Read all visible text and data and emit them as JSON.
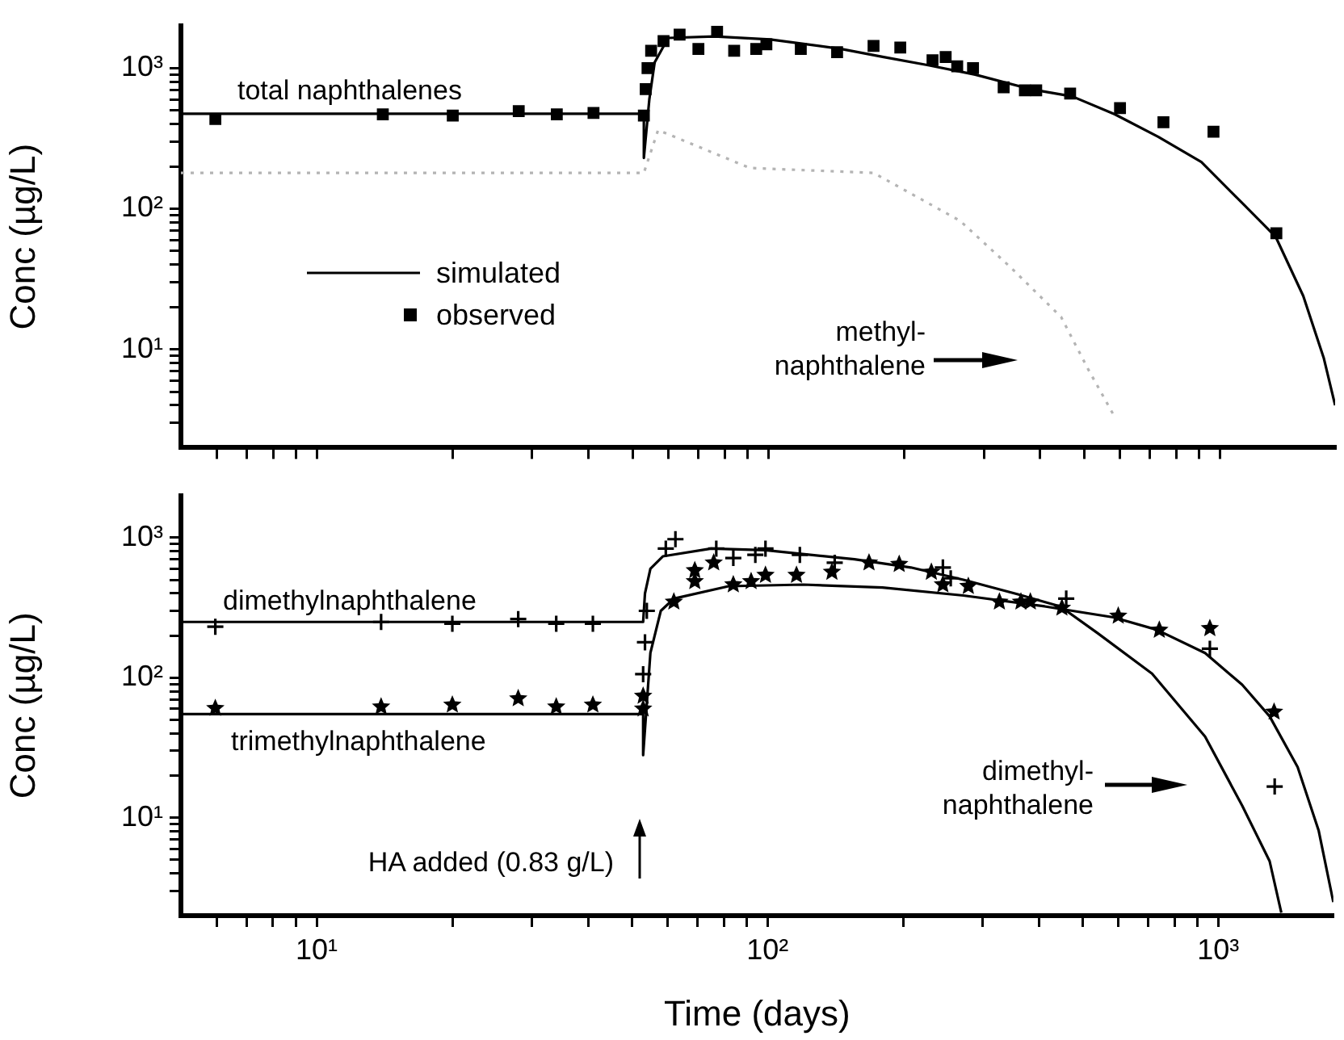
{
  "chart_data": [
    {
      "type": "line",
      "ylabel": "Conc (µg/L)",
      "log": "xy",
      "grid": false,
      "legend": "left",
      "tick_labels": "y",
      "xlim": [
        5,
        1800
      ],
      "ylim": [
        2,
        2000
      ],
      "xticks": [
        {
          "value": 6,
          "label": null
        },
        {
          "value": 7,
          "label": null
        },
        {
          "value": 8,
          "label": null
        },
        {
          "value": 9,
          "label": null
        },
        {
          "value": 10,
          "label": null
        },
        {
          "value": 20,
          "label": null
        },
        {
          "value": 30,
          "label": null
        },
        {
          "value": 40,
          "label": null
        },
        {
          "value": 50,
          "label": null
        },
        {
          "value": 60,
          "label": null
        },
        {
          "value": 70,
          "label": null
        },
        {
          "value": 80,
          "label": null
        },
        {
          "value": 90,
          "label": null
        },
        {
          "value": 100,
          "label": null
        },
        {
          "value": 200,
          "label": null
        },
        {
          "value": 300,
          "label": null
        },
        {
          "value": 400,
          "label": null
        },
        {
          "value": 500,
          "label": null
        },
        {
          "value": 600,
          "label": null
        },
        {
          "value": 700,
          "label": null
        },
        {
          "value": 800,
          "label": null
        },
        {
          "value": 900,
          "label": null
        },
        {
          "value": 1000,
          "label": null
        }
      ],
      "yticks": [
        {
          "value": 3,
          "label": null
        },
        {
          "value": 4,
          "label": null
        },
        {
          "value": 5,
          "label": null
        },
        {
          "value": 6,
          "label": null
        },
        {
          "value": 7,
          "label": null
        },
        {
          "value": 8,
          "label": null
        },
        {
          "value": 9,
          "label": null
        },
        {
          "value": 10,
          "label": "10¹"
        },
        {
          "value": 20,
          "label": null
        },
        {
          "value": 30,
          "label": null
        },
        {
          "value": 40,
          "label": null
        },
        {
          "value": 50,
          "label": null
        },
        {
          "value": 60,
          "label": null
        },
        {
          "value": 70,
          "label": null
        },
        {
          "value": 80,
          "label": null
        },
        {
          "value": 90,
          "label": null
        },
        {
          "value": 100,
          "label": "10²"
        },
        {
          "value": 200,
          "label": null
        },
        {
          "value": 300,
          "label": null
        },
        {
          "value": 400,
          "label": null
        },
        {
          "value": 500,
          "label": null
        },
        {
          "value": 600,
          "label": null
        },
        {
          "value": 700,
          "label": null
        },
        {
          "value": 800,
          "label": null
        },
        {
          "value": 900,
          "label": null
        },
        {
          "value": 1000,
          "label": "10³"
        }
      ],
      "series": [
        {
          "name": "simulated",
          "color": "#000000",
          "line_style": "solid",
          "marker": "none",
          "x": [
            5,
            53,
            53,
            54.5,
            56,
            60,
            76,
            101,
            145,
            180,
            226,
            287,
            380,
            471,
            585,
            730,
            910,
            1130,
            1330,
            1530,
            1700,
            1800
          ],
          "values": [
            474,
            474,
            230,
            600,
            1100,
            1640,
            1680,
            1600,
            1370,
            1200,
            1050,
            900,
            710,
            630,
            470,
            325,
            215,
            107,
            63,
            24,
            8.6,
            4
          ]
        },
        {
          "name": "observed",
          "type": "scatter",
          "color": "#000000",
          "marker": "square",
          "x": [
            5.96,
            14,
            20,
            28,
            34,
            41,
            53,
            53.5,
            54,
            55,
            58.6,
            63.6,
            70,
            77,
            84,
            94,
            99,
            118,
            142,
            171,
            196,
            231,
            247,
            262,
            284,
            332,
            370,
            392,
            466,
            601,
            750,
            968,
            1334
          ],
          "values": [
            435,
            470,
            460,
            495,
            470,
            480,
            460,
            710,
            1000,
            1330,
            1560,
            1730,
            1370,
            1820,
            1330,
            1370,
            1480,
            1370,
            1300,
            1440,
            1400,
            1140,
            1200,
            1030,
            1000,
            730,
            695,
            695,
            660,
            520,
            413,
            353,
            67
          ]
        },
        {
          "color": "#b4b4b4",
          "line_style": "dotted",
          "marker": "none",
          "x": [
            5,
            53,
            57,
            91,
            171,
            266,
            345,
            445,
            510,
            585
          ],
          "values": [
            180,
            180,
            363,
            195,
            180,
            82,
            38,
            17,
            7.3,
            3.3
          ]
        }
      ],
      "annotations": [
        "total naphthalenes",
        "methyl-\nnaphthalene"
      ]
    },
    {
      "type": "line",
      "xlabel": "Time (days)",
      "ylabel": "Conc (µg/L)",
      "log": "xy",
      "grid": false,
      "xlim": [
        5,
        1800
      ],
      "ylim": [
        2,
        2000
      ],
      "xticks": [
        {
          "value": 6,
          "label": null
        },
        {
          "value": 7,
          "label": null
        },
        {
          "value": 8,
          "label": null
        },
        {
          "value": 9,
          "label": null
        },
        {
          "value": 10,
          "label": "10¹"
        },
        {
          "value": 20,
          "label": null
        },
        {
          "value": 30,
          "label": null
        },
        {
          "value": 40,
          "label": null
        },
        {
          "value": 50,
          "label": null
        },
        {
          "value": 60,
          "label": null
        },
        {
          "value": 70,
          "label": null
        },
        {
          "value": 80,
          "label": null
        },
        {
          "value": 90,
          "label": null
        },
        {
          "value": 100,
          "label": "10²"
        },
        {
          "value": 200,
          "label": null
        },
        {
          "value": 300,
          "label": null
        },
        {
          "value": 400,
          "label": null
        },
        {
          "value": 500,
          "label": null
        },
        {
          "value": 600,
          "label": null
        },
        {
          "value": 700,
          "label": null
        },
        {
          "value": 800,
          "label": null
        },
        {
          "value": 900,
          "label": null
        },
        {
          "value": 1000,
          "label": "10³"
        }
      ],
      "yticks": [
        {
          "value": 3,
          "label": null
        },
        {
          "value": 4,
          "label": null
        },
        {
          "value": 5,
          "label": null
        },
        {
          "value": 6,
          "label": null
        },
        {
          "value": 7,
          "label": null
        },
        {
          "value": 8,
          "label": null
        },
        {
          "value": 9,
          "label": null
        },
        {
          "value": 10,
          "label": "10¹"
        },
        {
          "value": 20,
          "label": null
        },
        {
          "value": 30,
          "label": null
        },
        {
          "value": 40,
          "label": null
        },
        {
          "value": 50,
          "label": null
        },
        {
          "value": 60,
          "label": null
        },
        {
          "value": 70,
          "label": null
        },
        {
          "value": 80,
          "label": null
        },
        {
          "value": 90,
          "label": null
        },
        {
          "value": 100,
          "label": "10²"
        },
        {
          "value": 200,
          "label": null
        },
        {
          "value": 300,
          "label": null
        },
        {
          "value": 400,
          "label": null
        },
        {
          "value": 500,
          "label": null
        },
        {
          "value": 600,
          "label": null
        },
        {
          "value": 700,
          "label": null
        },
        {
          "value": 800,
          "label": null
        },
        {
          "value": 900,
          "label": null
        },
        {
          "value": 1000,
          "label": "10³"
        }
      ],
      "series": [
        {
          "color": "#000000",
          "line_style": "solid",
          "marker": "none",
          "x": [
            5,
            53,
            53.5,
            55,
            58.6,
            75,
            99,
            156,
            208,
            272,
            358,
            446,
            540,
            713,
            935,
            1130,
            1300,
            1380
          ],
          "values": [
            250,
            250,
            400,
            600,
            735,
            835,
            814,
            700,
            612,
            500,
            395,
            323,
            208,
            107,
            38,
            12.2,
            4.9,
            2.1
          ]
        },
        {
          "color": "#000000",
          "line_style": "solid",
          "marker": "none",
          "x": [
            5,
            53,
            53,
            55,
            58,
            62,
            82,
            120,
            180,
            272,
            412,
            585,
            730,
            935,
            1130,
            1300,
            1500,
            1670,
            1800
          ],
          "values": [
            55,
            55,
            28,
            150,
            300,
            367,
            450,
            462,
            440,
            386,
            323,
            270,
            220,
            150,
            89,
            53,
            23,
            8.1,
            2.5
          ]
        },
        {
          "type": "scatter",
          "color": "#000000",
          "marker": "cross",
          "x": [
            5.96,
            13.9,
            20,
            28,
            34,
            41,
            53,
            53.5,
            54,
            59.5,
            62.5,
            77,
            84,
            94,
            99,
            118,
            141,
            245,
            255,
            460,
            958,
            1334
          ],
          "values": [
            231,
            250,
            243,
            262,
            243,
            243,
            106,
            179,
            300,
            835,
            975,
            835,
            715,
            753,
            835,
            753,
            662,
            612,
            512,
            367,
            161,
            16.7
          ]
        },
        {
          "type": "scatter",
          "color": "#000000",
          "marker": "star",
          "x": [
            5.96,
            13.9,
            20,
            28,
            34,
            41,
            53,
            53,
            62,
            69,
            69,
            76,
            84,
            92,
            99,
            116,
            139,
            168,
            196,
            231,
            245,
            279,
            327,
            365,
            383,
            450,
            600,
            740,
            958,
            1330
          ],
          "values": [
            60.5,
            62,
            64,
            71,
            62,
            64,
            60,
            74,
            348,
            583,
            487,
            662,
            462,
            487,
            540,
            540,
            568,
            662,
            646,
            568,
            462,
            450,
            348,
            348,
            348,
            315,
            276,
            219,
            225,
            57
          ]
        }
      ],
      "annotations": [
        "dimethylnaphthalene",
        "trimethylnaphthalene",
        "dimethyl-\nnaphthalene",
        "HA added (0.83 g/L)"
      ]
    }
  ]
}
